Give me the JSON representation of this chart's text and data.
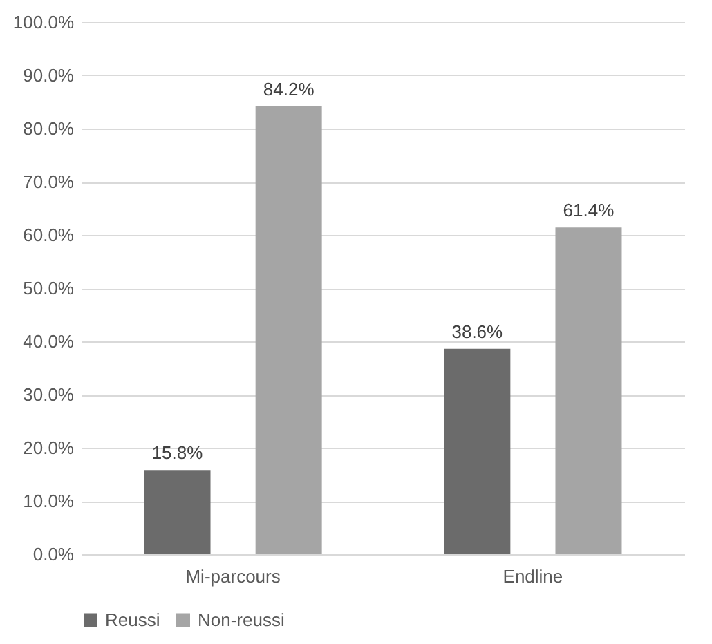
{
  "chart_data": {
    "type": "bar",
    "categories": [
      "Mi-parcours",
      "Endline"
    ],
    "series": [
      {
        "name": "Reussi",
        "color": "#6b6b6b",
        "values": [
          15.8,
          38.6
        ],
        "value_labels": [
          "15.8%",
          "38.6%"
        ]
      },
      {
        "name": "Non-reussi",
        "color": "#a5a5a5",
        "values": [
          84.2,
          61.4
        ],
        "value_labels": [
          "84.2%",
          "61.4%"
        ]
      }
    ],
    "ylim": [
      0,
      100
    ],
    "yticks": [
      {
        "value": 0,
        "label": "0.0%"
      },
      {
        "value": 10,
        "label": "10.0%"
      },
      {
        "value": 20,
        "label": "20.0%"
      },
      {
        "value": 30,
        "label": "30.0%"
      },
      {
        "value": 40,
        "label": "40.0%"
      },
      {
        "value": 50,
        "label": "50.0%"
      },
      {
        "value": 60,
        "label": "60.0%"
      },
      {
        "value": 70,
        "label": "70.0%"
      },
      {
        "value": 80,
        "label": "80.0%"
      },
      {
        "value": 90,
        "label": "90.0%"
      },
      {
        "value": 100,
        "label": "100.0%"
      }
    ],
    "grid": "y",
    "legend": "bottom"
  }
}
